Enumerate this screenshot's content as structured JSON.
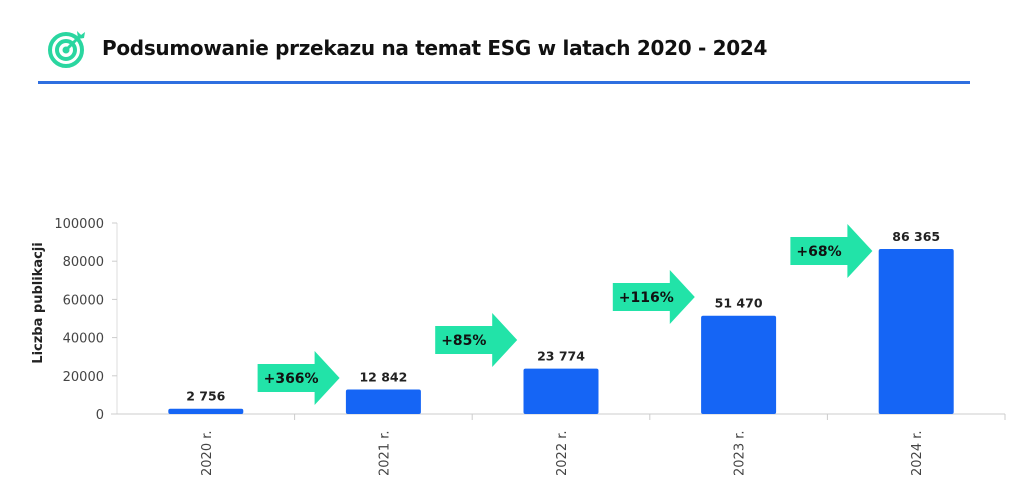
{
  "header": {
    "title": "Podsumowanie przekazu na temat ESG w latach 2020 - 2024",
    "icon": "target-icon"
  },
  "colors": {
    "bar": "#1565f5",
    "arrow": "#22e3a8",
    "rule": "#2f6fe0",
    "icon": "#2ad6a0"
  },
  "chart_data": {
    "type": "bar",
    "title": "",
    "xlabel": "",
    "ylabel": "Liczba publikacji",
    "ylim": [
      0,
      100000
    ],
    "yticks": [
      "0",
      "20000",
      "40000",
      "60000",
      "80000",
      "100000"
    ],
    "categories": [
      "2020 r.",
      "2021 r.",
      "2022 r.",
      "2023 r.",
      "2024 r."
    ],
    "values": [
      2756,
      12842,
      23774,
      51470,
      86365
    ],
    "data_labels": [
      "2 756",
      "12 842",
      "23 774",
      "51 470",
      "86 365"
    ],
    "growth_annotations": [
      "+366%",
      "+85%",
      "+116%",
      "+68%"
    ]
  }
}
